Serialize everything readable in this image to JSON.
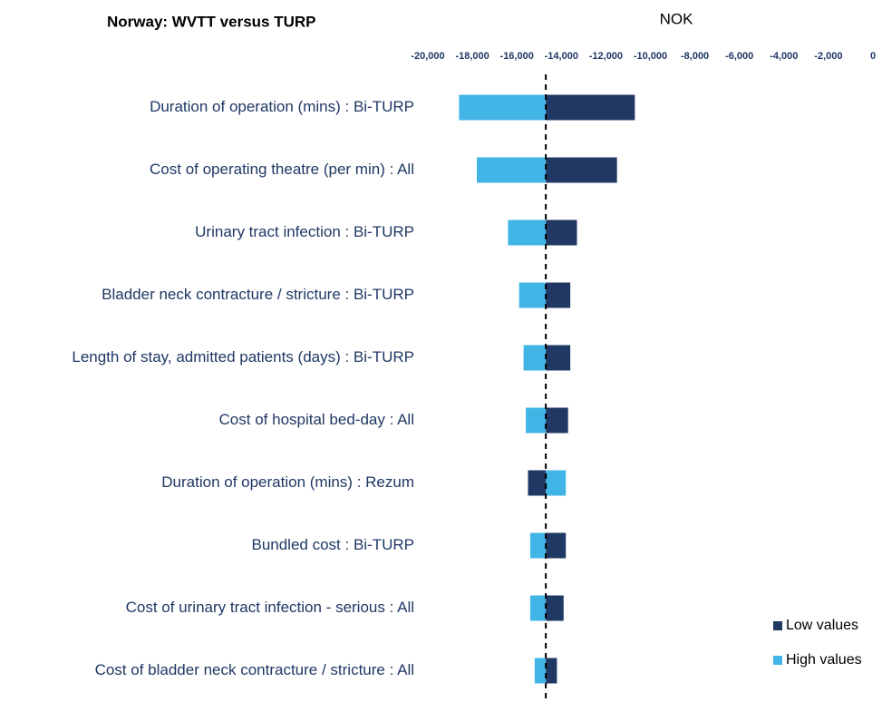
{
  "chart_data": {
    "type": "tornado",
    "title": "Norway: WVTT versus TURP",
    "xlabel": "NOK",
    "categories": [
      "Duration of operation (mins) : Bi-TURP",
      "Cost of operating theatre (per min) : All",
      "Urinary tract infection : Bi-TURP",
      "Bladder neck contracture / stricture : Bi-TURP",
      "Length of stay, admitted patients (days) : Bi-TURP",
      "Cost of hospital bed-day : All",
      "Duration of operation (mins) : Rezum",
      "Bundled cost : Bi-TURP",
      "Cost of urinary tract infection - serious : All",
      "Cost of bladder neck contracture / stricture : All"
    ],
    "base_value": -14700,
    "series": [
      {
        "name": "Low values",
        "color": "#1f3864",
        "values": [
          -10700,
          -11500,
          -13300,
          -13600,
          -13600,
          -13700,
          -15500,
          -13800,
          -13900,
          -14200
        ]
      },
      {
        "name": "High values",
        "color": "#41b6e6",
        "values": [
          -18600,
          -17800,
          -16400,
          -15900,
          -15700,
          -15600,
          -13800,
          -15400,
          -15400,
          -15200
        ]
      }
    ],
    "xlim": [
      -20000,
      0
    ],
    "xticks": [
      {
        "value": -20000,
        "label": "-20,000"
      },
      {
        "value": -18000,
        "label": "-18,000"
      },
      {
        "value": -16000,
        "label": "-16,000"
      },
      {
        "value": -14000,
        "label": "-14,000"
      },
      {
        "value": -12000,
        "label": "-12,000"
      },
      {
        "value": -10000,
        "label": "-10,000"
      },
      {
        "value": -8000,
        "label": "-8,000"
      },
      {
        "value": -6000,
        "label": "-6,000"
      },
      {
        "value": -4000,
        "label": "-4,000"
      },
      {
        "value": -2000,
        "label": "-2,000"
      },
      0
    ],
    "legend": "lower right"
  }
}
